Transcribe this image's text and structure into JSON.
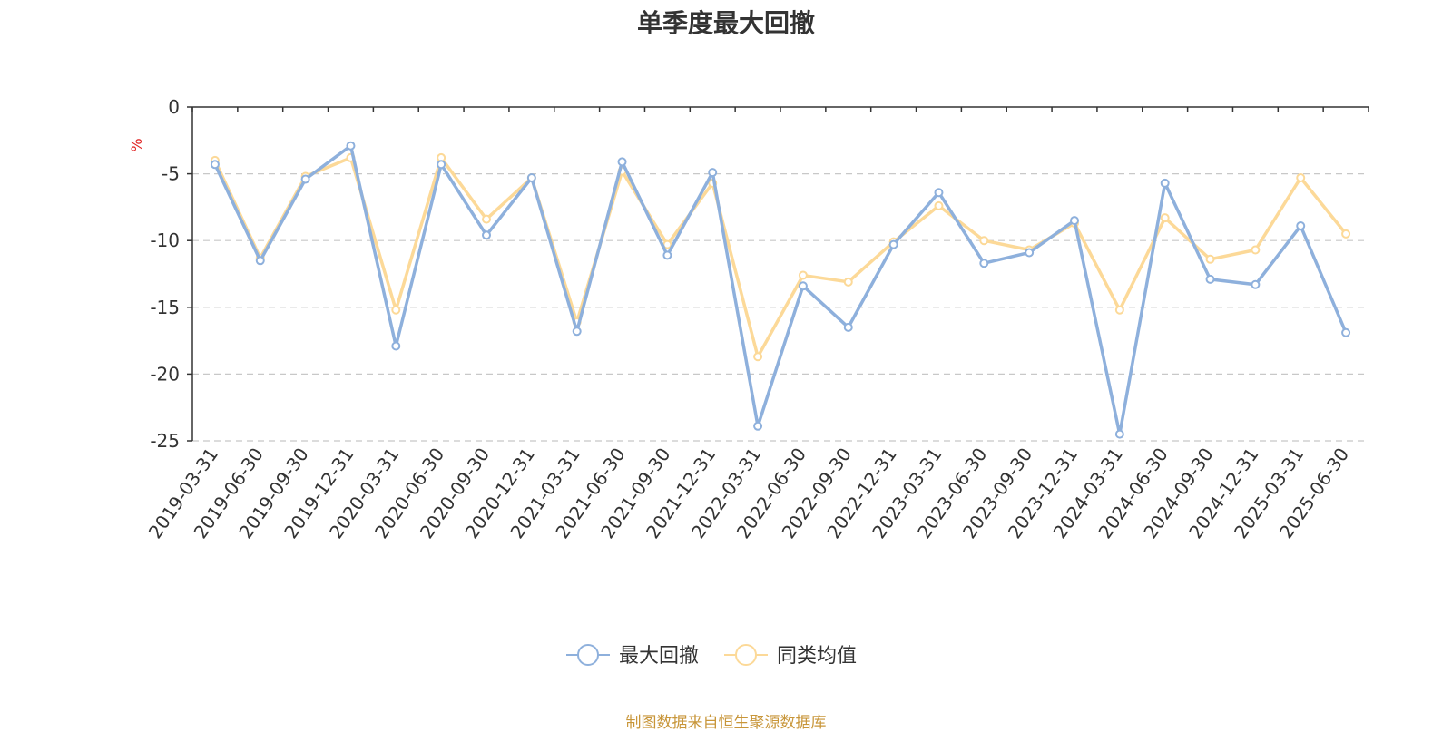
{
  "chart_data": {
    "type": "line",
    "title": "单季度最大回撤",
    "ylabel": "%",
    "ylim": [
      -25,
      0
    ],
    "yticks": [
      0,
      -5,
      -10,
      -15,
      -20,
      -25
    ],
    "grid": true,
    "legend_position": "bottom",
    "source_note": "制图数据来自恒生聚源数据库",
    "x": [
      "2019-03-31",
      "2019-06-30",
      "2019-09-30",
      "2019-12-31",
      "2020-03-31",
      "2020-06-30",
      "2020-09-30",
      "2020-12-31",
      "2021-03-31",
      "2021-06-30",
      "2021-09-30",
      "2021-12-31",
      "2022-03-31",
      "2022-06-30",
      "2022-09-30",
      "2022-12-31",
      "2023-03-31",
      "2023-06-30",
      "2023-09-30",
      "2023-12-31",
      "2024-03-31",
      "2024-06-30",
      "2024-09-30",
      "2024-12-31",
      "2025-03-31",
      "2025-06-30"
    ],
    "series": [
      {
        "name": "最大回撤",
        "color": "#8eb0dc",
        "values": [
          -4.3,
          -11.5,
          -5.4,
          -2.9,
          -17.9,
          -4.3,
          -9.6,
          -5.3,
          -16.8,
          -4.1,
          -11.1,
          -4.9,
          -23.9,
          -13.4,
          -16.5,
          -10.3,
          -6.4,
          -11.7,
          -10.9,
          -8.5,
          -24.5,
          -5.7,
          -12.9,
          -13.3,
          -8.9,
          -16.9
        ]
      },
      {
        "name": "同类均值",
        "color": "#fcd998",
        "values": [
          -4.0,
          -11.3,
          -5.2,
          -3.8,
          -15.2,
          -3.8,
          -8.4,
          -5.3,
          -16.1,
          -4.8,
          -10.3,
          -5.7,
          -18.7,
          -12.6,
          -13.1,
          -10.1,
          -7.4,
          -10.0,
          -10.7,
          -8.7,
          -15.2,
          -8.3,
          -11.4,
          -10.7,
          -5.3,
          -9.5
        ]
      }
    ]
  }
}
